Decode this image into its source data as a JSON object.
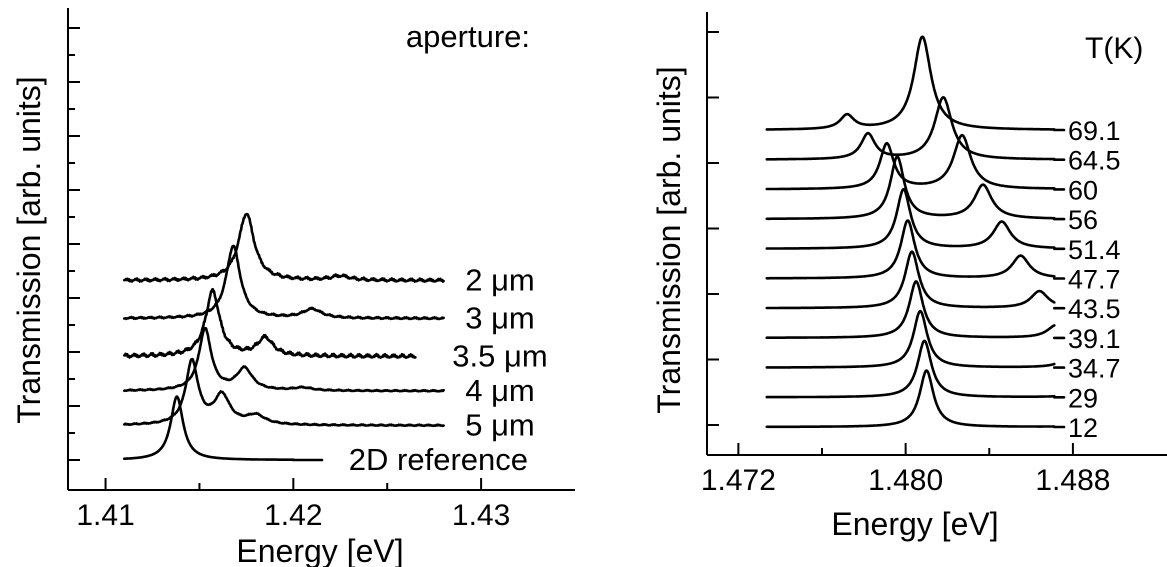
{
  "chart_data": [
    {
      "type": "line",
      "panel": "left",
      "xlabel": "Energy [eV]",
      "ylabel": "Transmission [arb. units]",
      "xlim": [
        1.408,
        1.435
      ],
      "x_ticks": [
        1.41,
        1.42,
        1.43
      ],
      "x_tick_labels": [
        "1.41",
        "1.42",
        "1.43"
      ],
      "y_ticks_count": 17,
      "legend_title": "aperture:",
      "series": [
        {
          "name": "2 μm",
          "x_start": 1.411,
          "x_end": 1.428,
          "baseline": 5.2,
          "noise": 0.05,
          "peaks": [
            {
              "center": 1.4175,
              "height": 1.85,
              "width": 0.0005
            },
            {
              "center": 1.4225,
              "height": 0.12,
              "width": 0.0006
            }
          ]
        },
        {
          "name": "3 μm",
          "x_start": 1.411,
          "x_end": 1.428,
          "baseline": 4.1,
          "noise": 0.03,
          "peaks": [
            {
              "center": 1.4168,
              "height": 2.0,
              "width": 0.00045
            },
            {
              "center": 1.421,
              "height": 0.25,
              "width": 0.0006
            }
          ]
        },
        {
          "name": "3.5 μm",
          "x_start": 1.411,
          "x_end": 1.4265,
          "baseline": 3.0,
          "noise": 0.06,
          "peaks": [
            {
              "center": 1.4157,
              "height": 1.8,
              "width": 0.00045
            },
            {
              "center": 1.4185,
              "height": 0.5,
              "width": 0.0005
            }
          ]
        },
        {
          "name": "4 μm",
          "x_start": 1.411,
          "x_end": 1.428,
          "baseline": 2.0,
          "noise": 0.02,
          "peaks": [
            {
              "center": 1.4153,
              "height": 1.7,
              "width": 0.0004
            },
            {
              "center": 1.4174,
              "height": 0.6,
              "width": 0.0005
            },
            {
              "center": 1.4205,
              "height": 0.08,
              "width": 0.0006
            }
          ]
        },
        {
          "name": "5 μm",
          "x_start": 1.411,
          "x_end": 1.428,
          "baseline": 1.0,
          "noise": 0.02,
          "peaks": [
            {
              "center": 1.4146,
              "height": 1.75,
              "width": 0.0004
            },
            {
              "center": 1.4162,
              "height": 0.8,
              "width": 0.0005
            },
            {
              "center": 1.418,
              "height": 0.25,
              "width": 0.0006
            }
          ]
        },
        {
          "name": "2D reference",
          "x_start": 1.411,
          "x_end": 1.42,
          "baseline": 0.0,
          "noise": 0.0,
          "peaks": [
            {
              "center": 1.4138,
              "height": 1.75,
              "width": 0.0004
            }
          ]
        }
      ]
    },
    {
      "type": "line",
      "panel": "right",
      "xlabel": "Energy [eV]",
      "ylabel": "Transmission [arb. units]",
      "xlim": [
        1.4705,
        1.4925
      ],
      "x_ticks": [
        1.472,
        1.48,
        1.488
      ],
      "x_tick_labels": [
        "1.472",
        "1.480",
        "1.488"
      ],
      "y_ticks_count": 7,
      "legend_title": "T(K)",
      "series": [
        {
          "name": "69.1",
          "baseline": 10.0,
          "peaks": [
            {
              "center": 1.4808,
              "height": 3.3,
              "width": 0.0005
            },
            {
              "center": 1.4772,
              "height": 0.5,
              "width": 0.0004
            }
          ]
        },
        {
          "name": "64.5",
          "baseline": 9.0,
          "peaks": [
            {
              "center": 1.4818,
              "height": 2.2,
              "width": 0.0005
            },
            {
              "center": 1.4782,
              "height": 0.9,
              "width": 0.0004
            }
          ]
        },
        {
          "name": "60",
          "baseline": 8.0,
          "peaks": [
            {
              "center": 1.4827,
              "height": 1.9,
              "width": 0.0005
            },
            {
              "center": 1.4791,
              "height": 1.6,
              "width": 0.0004
            },
            {
              "center": 1.4895,
              "height": 0.15,
              "width": 0.0006
            }
          ]
        },
        {
          "name": "56",
          "baseline": 7.0,
          "peaks": [
            {
              "center": 1.4796,
              "height": 2.2,
              "width": 0.0004
            },
            {
              "center": 1.4837,
              "height": 1.2,
              "width": 0.0005
            }
          ]
        },
        {
          "name": "51.4",
          "baseline": 6.0,
          "peaks": [
            {
              "center": 1.4799,
              "height": 2.1,
              "width": 0.0004
            },
            {
              "center": 1.4846,
              "height": 0.95,
              "width": 0.0005
            }
          ]
        },
        {
          "name": "47.7",
          "baseline": 5.0,
          "peaks": [
            {
              "center": 1.4801,
              "height": 2.05,
              "width": 0.0004
            },
            {
              "center": 1.4855,
              "height": 0.8,
              "width": 0.0005
            }
          ]
        },
        {
          "name": "43.5",
          "baseline": 4.0,
          "peaks": [
            {
              "center": 1.4803,
              "height": 2.0,
              "width": 0.0004
            },
            {
              "center": 1.4864,
              "height": 0.6,
              "width": 0.0005
            }
          ]
        },
        {
          "name": "39.1",
          "baseline": 3.0,
          "peaks": [
            {
              "center": 1.4805,
              "height": 2.0,
              "width": 0.0004
            },
            {
              "center": 1.4872,
              "height": 0.45,
              "width": 0.0005
            }
          ]
        },
        {
          "name": "34.7",
          "baseline": 2.0,
          "peaks": [
            {
              "center": 1.4807,
              "height": 2.0,
              "width": 0.0004
            },
            {
              "center": 1.4878,
              "height": 0.35,
              "width": 0.0005
            }
          ]
        },
        {
          "name": "29",
          "baseline": 1.0,
          "peaks": [
            {
              "center": 1.4809,
              "height": 2.0,
              "width": 0.0004
            },
            {
              "center": 1.4883,
              "height": 0.2,
              "width": 0.0005
            }
          ]
        },
        {
          "name": "12",
          "baseline": 0.0,
          "peaks": [
            {
              "center": 1.481,
              "height": 2.0,
              "width": 0.0004
            },
            {
              "center": 1.4888,
              "height": 0.12,
              "width": 0.0005
            }
          ]
        }
      ]
    }
  ]
}
